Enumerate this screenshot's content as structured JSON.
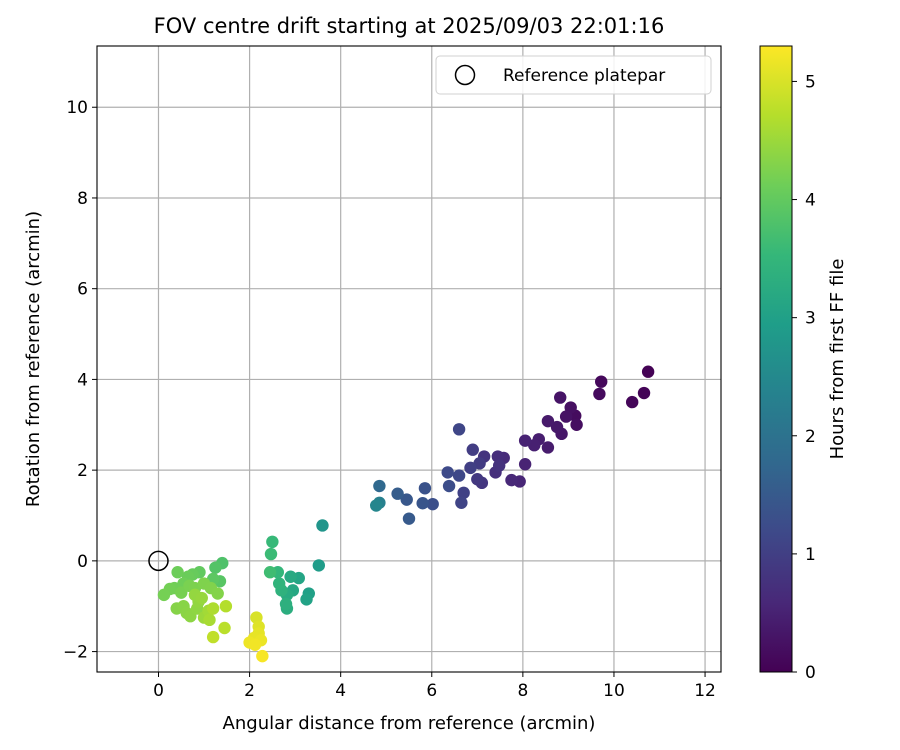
{
  "chart_data": {
    "type": "scatter",
    "title": "FOV centre drift starting at 2025/09/03 22:01:16",
    "xlabel": "Angular distance from reference (arcmin)",
    "ylabel": "Rotation from reference (arcmin)",
    "xlim": [
      -1.35,
      12.35
    ],
    "ylim": [
      -2.45,
      11.35
    ],
    "xticks": [
      0,
      2,
      4,
      6,
      8,
      10,
      12
    ],
    "yticks": [
      -2,
      0,
      2,
      4,
      6,
      8,
      10
    ],
    "grid": true,
    "legend": {
      "position": "top-right",
      "entries": [
        "Reference platepar"
      ]
    },
    "reference_point": {
      "x": 0,
      "y": 0,
      "label": "Reference platepar"
    },
    "colorbar": {
      "label": "Hours from first FF file",
      "min": 0,
      "max": 5.3,
      "ticks": [
        0,
        1,
        2,
        3,
        4,
        5
      ],
      "colormap": [
        "#440154",
        "#482878",
        "#3e4989",
        "#31688e",
        "#26828e",
        "#1f9e89",
        "#35b779",
        "#6ece58",
        "#b5de2b",
        "#fde725"
      ]
    },
    "points": [
      {
        "x": 10.75,
        "y": 4.17,
        "t": 0.02
      },
      {
        "x": 10.66,
        "y": 3.7,
        "t": 0.05
      },
      {
        "x": 10.4,
        "y": 3.5,
        "t": 0.08
      },
      {
        "x": 9.72,
        "y": 3.95,
        "t": 0.11
      },
      {
        "x": 9.68,
        "y": 3.68,
        "t": 0.14
      },
      {
        "x": 9.15,
        "y": 3.2,
        "t": 0.17
      },
      {
        "x": 9.18,
        "y": 3.0,
        "t": 0.2
      },
      {
        "x": 9.05,
        "y": 3.38,
        "t": 0.23
      },
      {
        "x": 8.95,
        "y": 3.18,
        "t": 0.26
      },
      {
        "x": 8.82,
        "y": 3.6,
        "t": 0.29
      },
      {
        "x": 8.85,
        "y": 2.8,
        "t": 0.32
      },
      {
        "x": 8.75,
        "y": 2.95,
        "t": 0.35
      },
      {
        "x": 8.55,
        "y": 3.08,
        "t": 0.38
      },
      {
        "x": 8.55,
        "y": 2.5,
        "t": 0.41
      },
      {
        "x": 8.35,
        "y": 2.68,
        "t": 0.44
      },
      {
        "x": 8.25,
        "y": 2.55,
        "t": 0.47
      },
      {
        "x": 8.05,
        "y": 2.65,
        "t": 0.5
      },
      {
        "x": 8.05,
        "y": 2.13,
        "t": 0.53
      },
      {
        "x": 7.93,
        "y": 1.75,
        "t": 0.56
      },
      {
        "x": 7.75,
        "y": 1.78,
        "t": 0.6
      },
      {
        "x": 7.58,
        "y": 2.27,
        "t": 0.64
      },
      {
        "x": 7.45,
        "y": 2.3,
        "t": 0.68
      },
      {
        "x": 7.4,
        "y": 1.95,
        "t": 0.72
      },
      {
        "x": 7.48,
        "y": 2.1,
        "t": 0.76
      },
      {
        "x": 7.15,
        "y": 2.3,
        "t": 0.8
      },
      {
        "x": 7.1,
        "y": 1.72,
        "t": 0.84
      },
      {
        "x": 7.0,
        "y": 1.8,
        "t": 0.88
      },
      {
        "x": 7.05,
        "y": 2.15,
        "t": 0.92
      },
      {
        "x": 6.9,
        "y": 2.45,
        "t": 0.96
      },
      {
        "x": 6.85,
        "y": 2.05,
        "t": 1.0
      },
      {
        "x": 6.7,
        "y": 1.5,
        "t": 1.04
      },
      {
        "x": 6.65,
        "y": 1.28,
        "t": 1.08
      },
      {
        "x": 6.6,
        "y": 2.9,
        "t": 1.12
      },
      {
        "x": 6.6,
        "y": 1.88,
        "t": 1.16
      },
      {
        "x": 6.35,
        "y": 1.95,
        "t": 1.2
      },
      {
        "x": 6.38,
        "y": 1.65,
        "t": 1.25
      },
      {
        "x": 6.02,
        "y": 1.25,
        "t": 1.3
      },
      {
        "x": 5.85,
        "y": 1.6,
        "t": 1.35
      },
      {
        "x": 5.8,
        "y": 1.27,
        "t": 1.4
      },
      {
        "x": 5.45,
        "y": 1.35,
        "t": 1.45
      },
      {
        "x": 5.5,
        "y": 0.93,
        "t": 1.5
      },
      {
        "x": 5.25,
        "y": 1.48,
        "t": 1.55
      },
      {
        "x": 4.85,
        "y": 1.65,
        "t": 1.8
      },
      {
        "x": 4.85,
        "y": 1.28,
        "t": 2.3
      },
      {
        "x": 4.78,
        "y": 1.22,
        "t": 2.45
      },
      {
        "x": 3.6,
        "y": 0.78,
        "t": 2.75
      },
      {
        "x": 3.52,
        "y": -0.1,
        "t": 2.9
      },
      {
        "x": 3.3,
        "y": -0.72,
        "t": 3.0
      },
      {
        "x": 3.25,
        "y": -0.85,
        "t": 3.05
      },
      {
        "x": 3.08,
        "y": -0.38,
        "t": 3.1
      },
      {
        "x": 2.95,
        "y": -0.65,
        "t": 3.15
      },
      {
        "x": 2.9,
        "y": -0.35,
        "t": 3.2
      },
      {
        "x": 2.82,
        "y": -0.75,
        "t": 3.25
      },
      {
        "x": 2.82,
        "y": -1.05,
        "t": 3.3
      },
      {
        "x": 2.8,
        "y": -0.95,
        "t": 3.35
      },
      {
        "x": 2.7,
        "y": -0.65,
        "t": 3.4
      },
      {
        "x": 2.65,
        "y": -0.5,
        "t": 3.45
      },
      {
        "x": 2.62,
        "y": -0.25,
        "t": 3.5
      },
      {
        "x": 2.5,
        "y": 0.42,
        "t": 3.55
      },
      {
        "x": 2.47,
        "y": 0.15,
        "t": 3.6
      },
      {
        "x": 2.45,
        "y": -0.25,
        "t": 3.65
      },
      {
        "x": 1.4,
        "y": -0.05,
        "t": 3.8
      },
      {
        "x": 1.25,
        "y": -0.15,
        "t": 3.85
      },
      {
        "x": 1.35,
        "y": -0.45,
        "t": 3.9
      },
      {
        "x": 1.2,
        "y": -0.4,
        "t": 3.95
      },
      {
        "x": 0.9,
        "y": -0.25,
        "t": 4.0
      },
      {
        "x": 0.75,
        "y": -0.3,
        "t": 4.05
      },
      {
        "x": 0.65,
        "y": -0.35,
        "t": 4.08
      },
      {
        "x": 0.42,
        "y": -0.25,
        "t": 4.1
      },
      {
        "x": 0.55,
        "y": -0.5,
        "t": 4.12
      },
      {
        "x": 0.35,
        "y": -0.6,
        "t": 4.14
      },
      {
        "x": 0.25,
        "y": -0.62,
        "t": 4.16
      },
      {
        "x": 0.12,
        "y": -0.75,
        "t": 4.18
      },
      {
        "x": 0.5,
        "y": -0.7,
        "t": 4.2
      },
      {
        "x": 0.68,
        "y": -0.55,
        "t": 4.22
      },
      {
        "x": 0.8,
        "y": -0.6,
        "t": 4.24
      },
      {
        "x": 1.0,
        "y": -0.5,
        "t": 4.26
      },
      {
        "x": 1.15,
        "y": -0.6,
        "t": 4.28
      },
      {
        "x": 1.3,
        "y": -0.72,
        "t": 4.3
      },
      {
        "x": 0.4,
        "y": -1.05,
        "t": 4.32
      },
      {
        "x": 0.55,
        "y": -1.0,
        "t": 4.34
      },
      {
        "x": 0.62,
        "y": -1.15,
        "t": 4.36
      },
      {
        "x": 0.7,
        "y": -1.22,
        "t": 4.38
      },
      {
        "x": 0.85,
        "y": -1.05,
        "t": 4.4
      },
      {
        "x": 0.88,
        "y": -0.9,
        "t": 4.42
      },
      {
        "x": 0.8,
        "y": -0.75,
        "t": 4.44
      },
      {
        "x": 0.95,
        "y": -0.82,
        "t": 4.46
      },
      {
        "x": 1.0,
        "y": -1.25,
        "t": 4.5
      },
      {
        "x": 1.1,
        "y": -1.1,
        "t": 4.55
      },
      {
        "x": 1.12,
        "y": -1.3,
        "t": 4.6
      },
      {
        "x": 1.2,
        "y": -1.05,
        "t": 4.65
      },
      {
        "x": 1.48,
        "y": -1.0,
        "t": 4.7
      },
      {
        "x": 1.45,
        "y": -1.48,
        "t": 4.75
      },
      {
        "x": 1.2,
        "y": -1.68,
        "t": 4.8
      },
      {
        "x": 2.15,
        "y": -1.25,
        "t": 5.0
      },
      {
        "x": 2.2,
        "y": -1.45,
        "t": 5.05
      },
      {
        "x": 2.2,
        "y": -1.6,
        "t": 5.1
      },
      {
        "x": 2.1,
        "y": -1.7,
        "t": 5.12
      },
      {
        "x": 2.25,
        "y": -1.75,
        "t": 5.15
      },
      {
        "x": 2.0,
        "y": -1.8,
        "t": 5.18
      },
      {
        "x": 2.12,
        "y": -1.85,
        "t": 5.2
      },
      {
        "x": 2.28,
        "y": -2.1,
        "t": 5.25
      }
    ]
  }
}
